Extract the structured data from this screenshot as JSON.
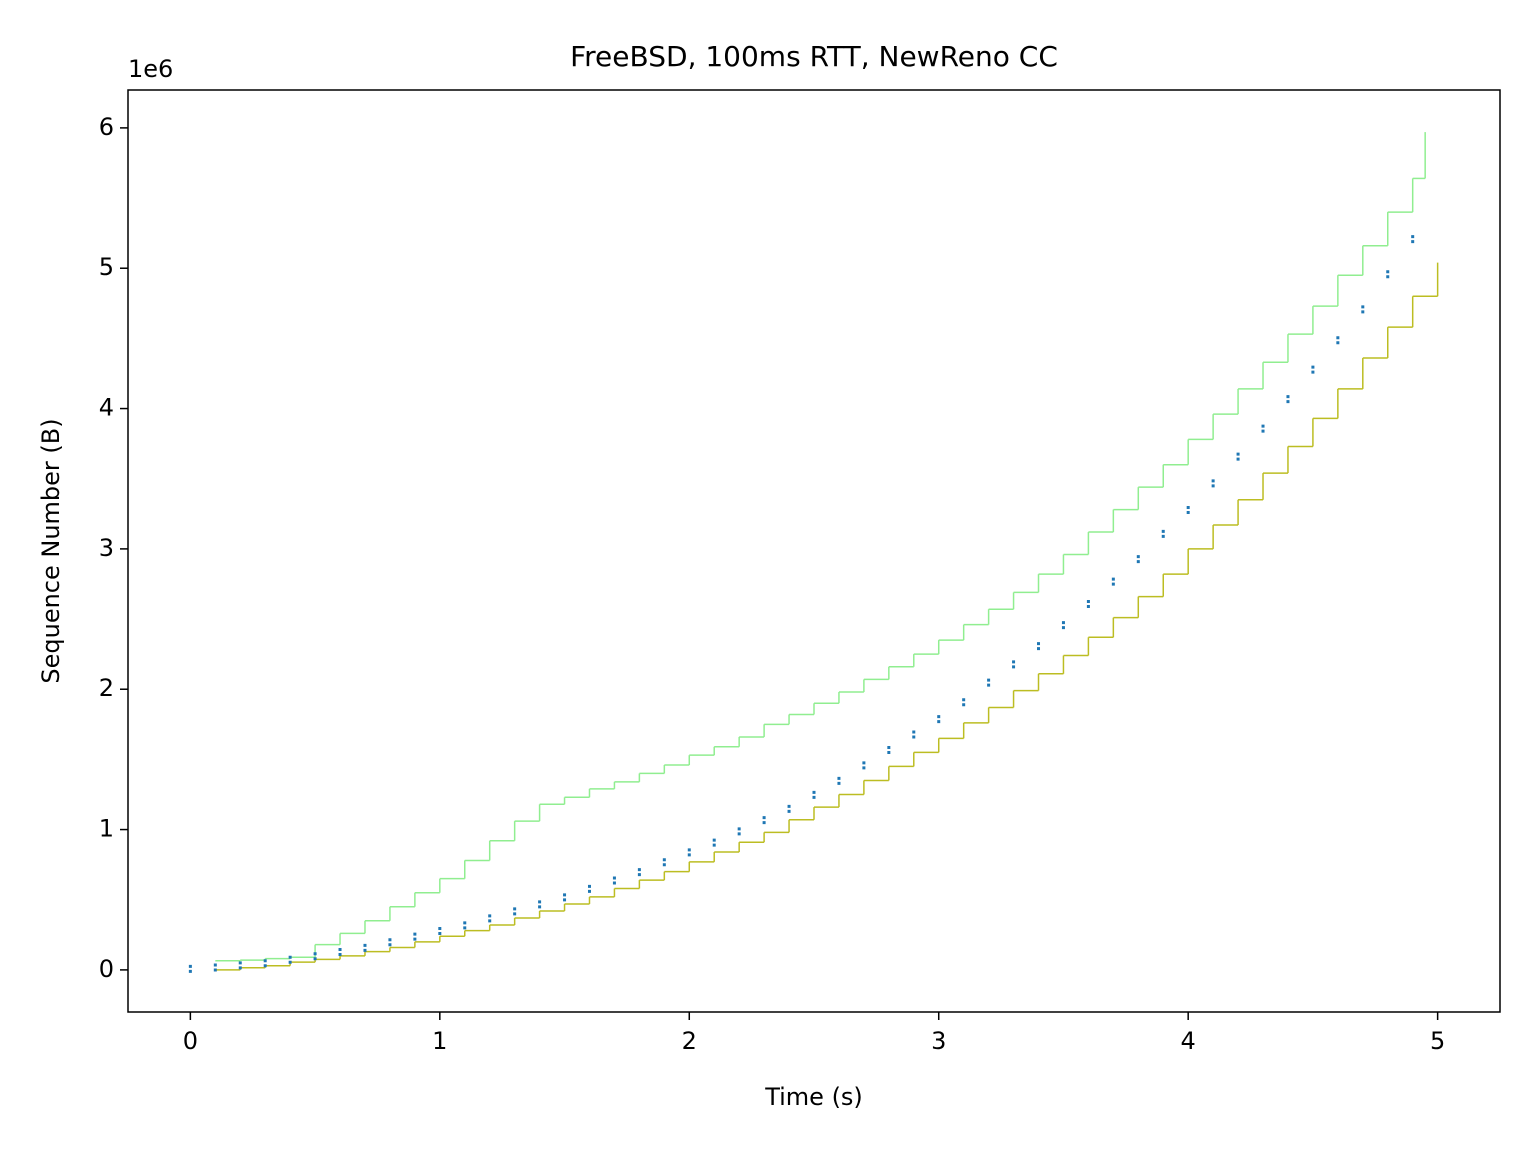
{
  "chart_data": {
    "type": "line",
    "title": "FreeBSD, 100ms RTT, NewReno CC",
    "x_label": "Time (s)",
    "y_label": "Sequence Number (B)",
    "y_offset_label": "1e6",
    "xlim": [
      -0.25,
      5.25
    ],
    "xticks": [
      0,
      1,
      2,
      3,
      4,
      5
    ],
    "ylim": [
      -0.3,
      6.27
    ],
    "yticks": [
      0,
      1,
      2,
      3,
      4,
      5,
      6
    ],
    "drawstyle": "steps-post",
    "grid": false,
    "series": [
      {
        "color": "#90ee90",
        "style": "step",
        "x": [
          0.1,
          0.2,
          0.3,
          0.4,
          0.5,
          0.6,
          0.7,
          0.8,
          0.9,
          1.0,
          1.1,
          1.2,
          1.3,
          1.4,
          1.5,
          1.6,
          1.7,
          1.8,
          1.9,
          2.0,
          2.1,
          2.2,
          2.3,
          2.4,
          2.5,
          2.6,
          2.7,
          2.8,
          2.9,
          3.0,
          3.1,
          3.2,
          3.3,
          3.4,
          3.5,
          3.6,
          3.7,
          3.8,
          3.9,
          4.0,
          4.1,
          4.2,
          4.3,
          4.4,
          4.5,
          4.6,
          4.7,
          4.8,
          4.9,
          4.95
        ],
        "values": [
          0.065,
          0.07,
          0.08,
          0.09,
          0.18,
          0.26,
          0.35,
          0.45,
          0.55,
          0.65,
          0.78,
          0.92,
          1.06,
          1.18,
          1.23,
          1.29,
          1.34,
          1.4,
          1.46,
          1.53,
          1.59,
          1.66,
          1.75,
          1.82,
          1.9,
          1.98,
          2.07,
          2.16,
          2.25,
          2.35,
          2.46,
          2.57,
          2.69,
          2.82,
          2.96,
          3.12,
          3.28,
          3.44,
          3.6,
          3.78,
          3.96,
          4.14,
          4.33,
          4.53,
          4.73,
          4.95,
          5.16,
          5.4,
          5.64,
          5.97
        ]
      },
      {
        "color": "#bcbd22",
        "style": "step",
        "x": [
          0.1,
          0.2,
          0.3,
          0.4,
          0.5,
          0.6,
          0.7,
          0.8,
          0.9,
          1.0,
          1.1,
          1.2,
          1.3,
          1.4,
          1.5,
          1.6,
          1.7,
          1.8,
          1.9,
          2.0,
          2.1,
          2.2,
          2.3,
          2.4,
          2.5,
          2.6,
          2.7,
          2.8,
          2.9,
          3.0,
          3.1,
          3.2,
          3.3,
          3.4,
          3.5,
          3.6,
          3.7,
          3.8,
          3.9,
          4.0,
          4.1,
          4.2,
          4.3,
          4.4,
          4.5,
          4.6,
          4.7,
          4.8,
          4.9,
          5.0
        ],
        "values": [
          0,
          0.015,
          0.03,
          0.055,
          0.075,
          0.1,
          0.13,
          0.16,
          0.2,
          0.24,
          0.28,
          0.32,
          0.37,
          0.42,
          0.47,
          0.52,
          0.58,
          0.64,
          0.7,
          0.77,
          0.84,
          0.91,
          0.98,
          1.07,
          1.16,
          1.25,
          1.35,
          1.45,
          1.55,
          1.65,
          1.76,
          1.87,
          1.99,
          2.11,
          2.24,
          2.37,
          2.51,
          2.66,
          2.82,
          3.0,
          3.17,
          3.35,
          3.54,
          3.73,
          3.93,
          4.14,
          4.36,
          4.58,
          4.8,
          5.04
        ]
      },
      {
        "color": "#1f77b4",
        "style": "ticks",
        "x": [
          0,
          0.1,
          0.2,
          0.3,
          0.4,
          0.5,
          0.6,
          0.7,
          0.8,
          0.9,
          1.0,
          1.1,
          1.2,
          1.3,
          1.4,
          1.5,
          1.6,
          1.7,
          1.8,
          1.9,
          2.0,
          2.1,
          2.2,
          2.3,
          2.4,
          2.5,
          2.6,
          2.7,
          2.8,
          2.9,
          3.0,
          3.1,
          3.2,
          3.3,
          3.4,
          3.5,
          3.6,
          3.7,
          3.8,
          3.9,
          4.0,
          4.1,
          4.2,
          4.3,
          4.4,
          4.5,
          4.6,
          4.7,
          4.8,
          4.9
        ],
        "values": [
          0,
          0.01,
          0.025,
          0.04,
          0.065,
          0.09,
          0.12,
          0.15,
          0.19,
          0.23,
          0.27,
          0.31,
          0.36,
          0.41,
          0.46,
          0.51,
          0.57,
          0.63,
          0.69,
          0.76,
          0.83,
          0.9,
          0.98,
          1.06,
          1.14,
          1.24,
          1.34,
          1.45,
          1.56,
          1.67,
          1.78,
          1.9,
          2.04,
          2.17,
          2.3,
          2.45,
          2.6,
          2.76,
          2.92,
          3.1,
          3.27,
          3.46,
          3.65,
          3.85,
          4.06,
          4.27,
          4.48,
          4.7,
          4.95,
          5.2
        ]
      }
    ]
  }
}
